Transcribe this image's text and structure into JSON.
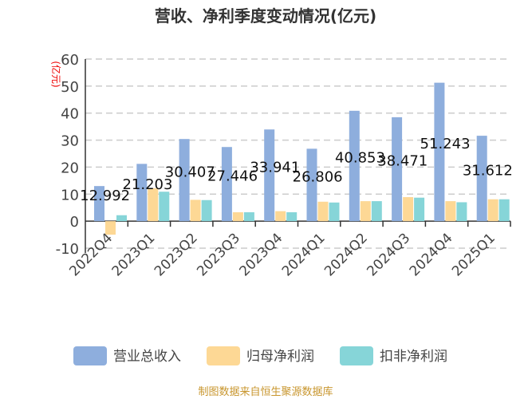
{
  "chart_data": {
    "type": "bar",
    "title": "营收、净利季度变动情况(亿元)",
    "ylabel": "(亿元)",
    "ylim": [
      -10,
      60
    ],
    "yticks": [
      -10,
      0,
      10,
      20,
      30,
      40,
      50,
      60
    ],
    "grid": true,
    "legend_position": "bottom",
    "categories": [
      "2022Q4",
      "2023Q1",
      "2023Q2",
      "2023Q3",
      "2023Q4",
      "2024Q1",
      "2024Q2",
      "2024Q3",
      "2024Q4",
      "2025Q1"
    ],
    "series": [
      {
        "name": "营业总收入",
        "color": "#8eaedd",
        "values": [
          12.992,
          21.203,
          30.407,
          27.446,
          33.941,
          26.806,
          40.853,
          38.471,
          51.243,
          31.612
        ],
        "data_labels": [
          "12.992",
          "21.203",
          "30.407",
          "27.446",
          "33.941",
          "26.806",
          "40.853",
          "38.471",
          "51.243",
          "31.612"
        ]
      },
      {
        "name": "归母净利润",
        "color": "#fdd895",
        "values": [
          -5.0,
          12.2,
          7.9,
          3.3,
          3.7,
          7.2,
          7.4,
          8.9,
          7.4,
          8.1
        ]
      },
      {
        "name": "扣非净利润",
        "color": "#86d5d8",
        "values": [
          2.2,
          10.9,
          7.8,
          3.3,
          3.3,
          6.9,
          7.4,
          8.7,
          7.0,
          8.1
        ]
      }
    ]
  },
  "footer": {
    "source": "制图数据来自恒生聚源数据库",
    "color": "#c8962e"
  }
}
